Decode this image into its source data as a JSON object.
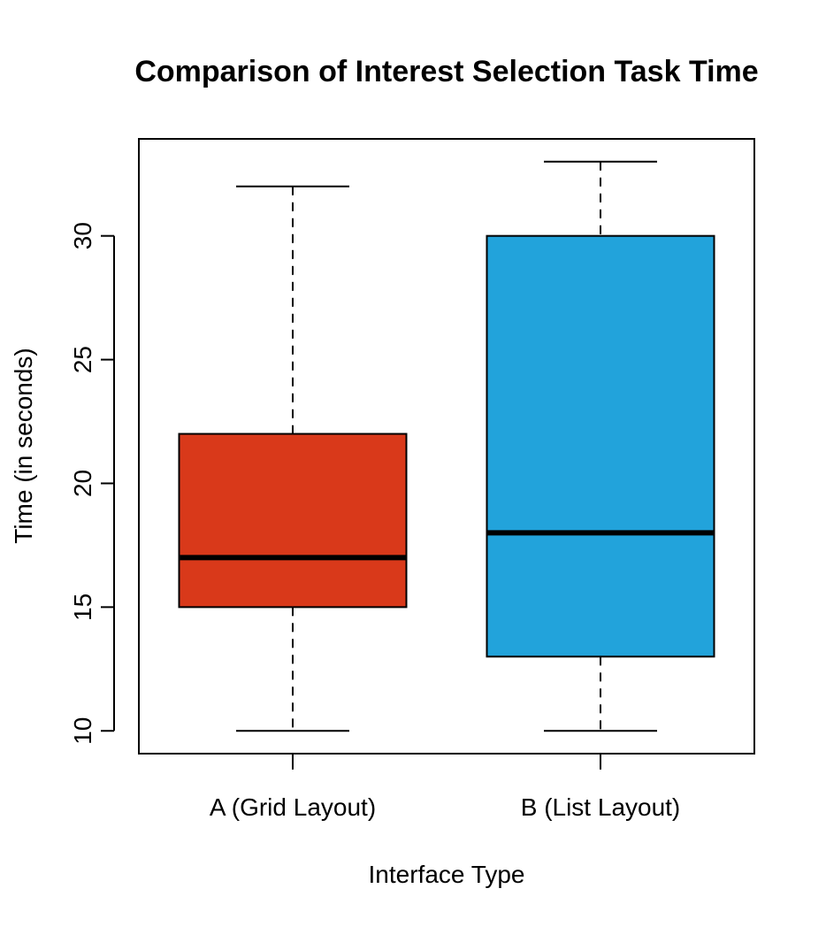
{
  "chart_data": {
    "type": "box",
    "title": "Comparison of Interest Selection Task Time",
    "xlabel": "Interface Type",
    "ylabel": "Time (in seconds)",
    "categories": [
      "A (Grid Layout)",
      "B (List Layout)"
    ],
    "boxes": [
      {
        "category": "A (Grid Layout)",
        "min": 10,
        "q1": 15,
        "median": 17,
        "q3": 22,
        "max": 32,
        "color": "#d9391a"
      },
      {
        "category": "B (List Layout)",
        "min": 10,
        "q1": 13,
        "median": 18,
        "q3": 30,
        "max": 33,
        "color": "#22a3db"
      }
    ],
    "yticks": [
      10,
      15,
      20,
      25,
      30
    ],
    "ylim": [
      9.08,
      33.92
    ],
    "grid": false,
    "legend": "none"
  }
}
